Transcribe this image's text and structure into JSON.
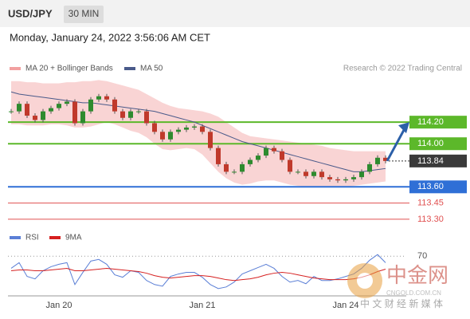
{
  "chart_data": {
    "type": "candlestick",
    "title": "USD/JPY",
    "interval": "30 MIN",
    "timestamp": "Monday, January 24, 2022 3:56:06 AM CET",
    "credit": "Research © 2022 Trading Central",
    "ylim": [
      113.24,
      114.63
    ],
    "categories": [
      null,
      null,
      null,
      null,
      null,
      null,
      "Jan 20",
      null,
      null,
      null,
      null,
      null,
      null,
      null,
      null,
      null,
      null,
      null,
      null,
      null,
      null,
      null,
      null,
      null,
      "Jan 21",
      null,
      null,
      null,
      null,
      null,
      null,
      null,
      null,
      null,
      null,
      null,
      null,
      null,
      null,
      null,
      null,
      null,
      "Jan 24",
      null,
      null,
      null,
      null,
      null
    ],
    "series": [
      {
        "name": "USD/JPY",
        "up_color": "#2e8b2e",
        "down_color": "#c0392b",
        "values": [
          114.3,
          114.37,
          114.26,
          114.22,
          114.3,
          114.33,
          114.37,
          114.39,
          114.19,
          114.3,
          114.41,
          114.44,
          114.41,
          114.3,
          114.24,
          114.3,
          114.3,
          114.19,
          114.11,
          114.04,
          114.11,
          114.13,
          114.15,
          114.16,
          114.11,
          113.96,
          113.81,
          113.74,
          113.74,
          113.81,
          113.85,
          113.89,
          113.96,
          113.93,
          113.85,
          113.74,
          113.74,
          113.7,
          113.74,
          113.69,
          113.67,
          113.66,
          113.67,
          113.69,
          113.74,
          113.81,
          113.87,
          113.84
        ]
      },
      {
        "name": "MA 50",
        "color": "#4a5a8a",
        "values": [
          114.48,
          114.46,
          114.45,
          114.44,
          114.43,
          114.42,
          114.41,
          114.4,
          114.39,
          114.38,
          114.38,
          114.37,
          114.36,
          114.35,
          114.34,
          114.33,
          114.32,
          114.31,
          114.3,
          114.28,
          114.26,
          114.24,
          114.22,
          114.2,
          114.17,
          114.14,
          114.11,
          114.08,
          114.05,
          114.02,
          114.0,
          113.98,
          113.96,
          113.94,
          113.92,
          113.9,
          113.88,
          113.86,
          113.84,
          113.82,
          113.8,
          113.78,
          113.76,
          113.74,
          113.74,
          113.75,
          113.76,
          113.77
        ]
      }
    ],
    "bands": {
      "name": "MA 20 + Bollinger Bands",
      "color": "#f2a0a0",
      "upper": [
        114.58,
        114.58,
        114.57,
        114.57,
        114.56,
        114.56,
        114.56,
        114.57,
        114.57,
        114.58,
        114.58,
        114.59,
        114.58,
        114.56,
        114.54,
        114.52,
        114.5,
        114.46,
        114.42,
        114.38,
        114.35,
        114.33,
        114.32,
        114.31,
        114.3,
        114.28,
        114.25,
        114.2,
        114.15,
        114.1,
        114.07,
        114.06,
        114.05,
        114.04,
        114.03,
        114.02,
        114.01,
        114.0,
        113.99,
        113.98,
        113.96,
        113.95,
        113.94,
        113.93,
        113.93,
        113.93,
        113.93,
        113.93
      ],
      "lower": [
        114.18,
        114.18,
        114.17,
        114.17,
        114.17,
        114.18,
        114.18,
        114.17,
        114.15,
        114.15,
        114.16,
        114.18,
        114.2,
        114.18,
        114.15,
        114.12,
        114.1,
        114.06,
        114.0,
        113.95,
        113.94,
        113.95,
        113.96,
        113.95,
        113.9,
        113.82,
        113.74,
        113.68,
        113.64,
        113.62,
        113.63,
        113.65,
        113.66,
        113.66,
        113.64,
        113.62,
        113.61,
        113.6,
        113.6,
        113.6,
        113.6,
        113.6,
        113.6,
        113.61,
        113.62,
        113.63,
        113.64,
        113.65
      ]
    },
    "levels": [
      {
        "value": 114.2,
        "label": "114.20",
        "color": "#5cb82a",
        "style": "box"
      },
      {
        "value": 114.0,
        "label": "114.00",
        "color": "#5cb82a",
        "style": "box"
      },
      {
        "value": 113.84,
        "label": "113.84",
        "color": "#3a3a3a",
        "style": "current"
      },
      {
        "value": 113.6,
        "label": "113.60",
        "color": "#2f6fd6",
        "style": "box"
      },
      {
        "value": 113.45,
        "label": "113.45",
        "color": "#e05050",
        "style": "text"
      },
      {
        "value": 113.3,
        "label": "113.30",
        "color": "#e05050",
        "style": "text"
      }
    ],
    "rsi": {
      "ylim": [
        20,
        86
      ],
      "yticks": [
        70
      ],
      "series": [
        {
          "name": "RSI",
          "color": "#5b7fd6",
          "values": [
            55,
            62,
            45,
            42,
            52,
            57,
            60,
            62,
            35,
            50,
            64,
            66,
            60,
            47,
            44,
            52,
            50,
            40,
            35,
            33,
            45,
            48,
            50,
            50,
            44,
            35,
            30,
            32,
            38,
            48,
            52,
            56,
            60,
            55,
            45,
            38,
            40,
            36,
            45,
            40,
            40,
            42,
            45,
            48,
            55,
            65,
            72,
            62
          ]
        },
        {
          "name": "9MA",
          "color": "#d62020",
          "values": [
            52,
            53,
            53,
            52,
            52,
            53,
            54,
            55,
            52,
            52,
            53,
            54,
            55,
            54,
            53,
            52,
            51,
            49,
            46,
            44,
            43,
            44,
            45,
            46,
            46,
            45,
            43,
            41,
            40,
            41,
            42,
            44,
            47,
            49,
            50,
            49,
            47,
            45,
            43,
            42,
            41,
            41,
            41,
            42,
            44,
            47,
            51,
            54
          ]
        }
      ]
    }
  },
  "watermark": {
    "name": "中金网",
    "site": "CNGOLD.COM.CN",
    "slogan": "中 文 财 经 新 媒 体"
  }
}
